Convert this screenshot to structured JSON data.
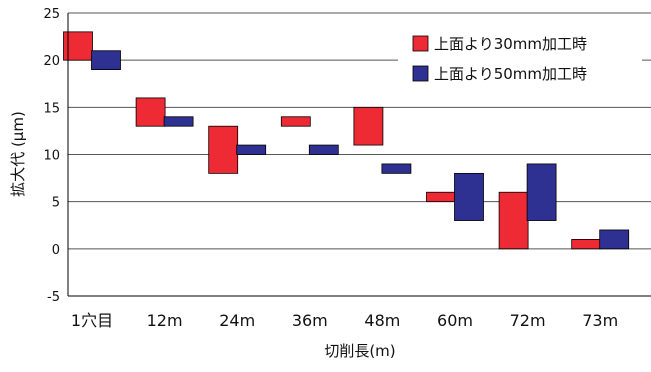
{
  "chart_data": {
    "type": "floating-bar",
    "title": "",
    "xlabel": "切削長(m)",
    "ylabel": "拡大代 (μm)",
    "ylim": [
      -5,
      25
    ],
    "yticks": [
      -5,
      0,
      5,
      10,
      15,
      20,
      25
    ],
    "grid": "horizontal",
    "legend_position": "top-right",
    "categories": [
      "1穴目",
      "12m",
      "24m",
      "36m",
      "48m",
      "60m",
      "72m",
      "73m"
    ],
    "series": [
      {
        "name": "上面より30mm加工時",
        "color": "#ee2b35",
        "ranges": [
          [
            20,
            23
          ],
          [
            13,
            16
          ],
          [
            8,
            13
          ],
          [
            13,
            14
          ],
          [
            11,
            15
          ],
          [
            5,
            6
          ],
          [
            0,
            6
          ],
          [
            0,
            1
          ]
        ]
      },
      {
        "name": "上面より50mm加工時",
        "color": "#2e3192",
        "ranges": [
          [
            19,
            21
          ],
          [
            13,
            14
          ],
          [
            10,
            11
          ],
          [
            10,
            11
          ],
          [
            8,
            9
          ],
          [
            3,
            8
          ],
          [
            3,
            9
          ],
          [
            0,
            2
          ]
        ]
      }
    ]
  }
}
